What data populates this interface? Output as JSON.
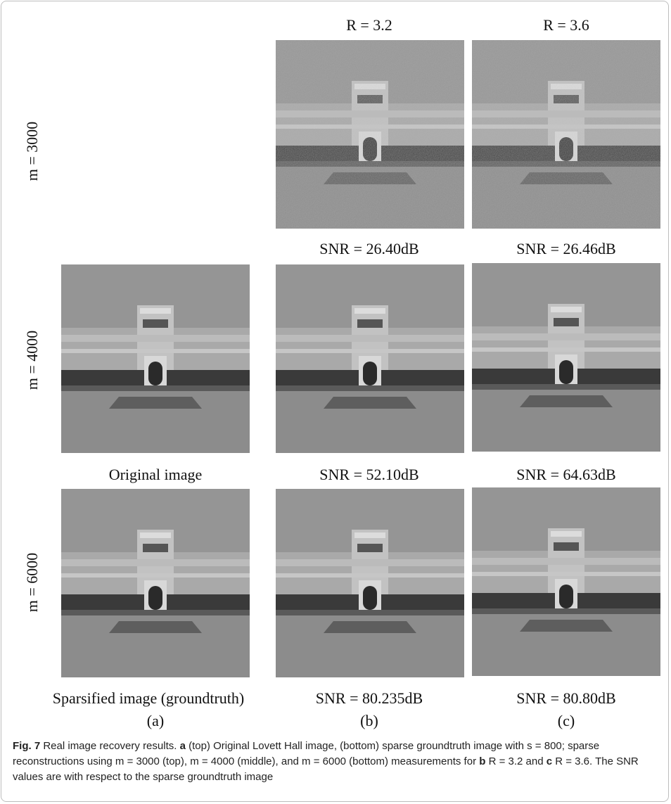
{
  "figure": {
    "column_headers": [
      "R = 3.2",
      "R = 3.6"
    ],
    "row_labels": [
      "m = 3000",
      "m = 4000",
      "m = 6000"
    ],
    "panel_captions": {
      "row1": [
        "SNR = 26.40dB",
        "SNR = 26.46dB"
      ],
      "row2": [
        "Original image",
        "SNR = 52.10dB",
        "SNR = 64.63dB"
      ],
      "row3": [
        "Sparsified image (groundtruth)",
        "SNR = 80.235dB",
        "SNR = 80.80dB"
      ]
    },
    "column_letters": [
      "(a)",
      "(b)",
      "(c)"
    ]
  },
  "caption": {
    "segments": [
      {
        "text": "Fig. 7",
        "bold": true
      },
      {
        "text": " Real image recovery results. ",
        "bold": false
      },
      {
        "text": "a",
        "bold": true
      },
      {
        "text": " (top) Original Lovett Hall image, (bottom) sparse groundtruth image with s = 800; sparse reconstructions using m = 3000 (top), m = 4000 (middle), and m = 6000 (bottom) measurements for ",
        "bold": false
      },
      {
        "text": "b",
        "bold": true
      },
      {
        "text": " R = 3.2 and ",
        "bold": false
      },
      {
        "text": "c",
        "bold": true
      },
      {
        "text": " R = 3.6. The SNR values are with respect to the sparse groundtruth image",
        "bold": false
      }
    ]
  }
}
